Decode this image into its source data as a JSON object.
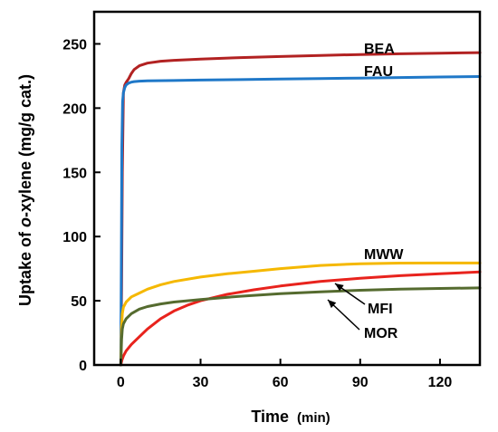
{
  "chart_data": {
    "type": "line",
    "xlabel": "Time",
    "xlabel_unit": "(min)",
    "ylabel_prefix": "Uptake of ",
    "ylabel_italic": "o",
    "ylabel_suffix": "-xylene (mg/g cat.)",
    "xlim": [
      -10,
      135
    ],
    "ylim": [
      0,
      275
    ],
    "x_ticks": [
      0,
      30,
      60,
      90,
      120
    ],
    "y_ticks": [
      0,
      50,
      100,
      150,
      200,
      250
    ],
    "grid": false,
    "series": [
      {
        "name": "BEA",
        "color": "#b22222",
        "x": [
          0,
          0.3,
          0.6,
          1,
          1.5,
          2,
          3,
          4,
          5,
          7,
          10,
          15,
          20,
          30,
          45,
          60,
          75,
          90,
          105,
          120,
          135
        ],
        "y": [
          0,
          60,
          150,
          212,
          218,
          220,
          223,
          227,
          230,
          233,
          235,
          236.5,
          237.2,
          238.2,
          239.3,
          240.2,
          241,
          241.7,
          242.3,
          242.8,
          243.2
        ]
      },
      {
        "name": "FAU",
        "color": "#1f78c8",
        "x": [
          0,
          0.2,
          0.4,
          0.7,
          1,
          1.5,
          2,
          3,
          4,
          5,
          7,
          10,
          20,
          30,
          45,
          60,
          75,
          90,
          105,
          120,
          135
        ],
        "y": [
          0,
          80,
          170,
          205,
          212,
          216,
          218,
          219.5,
          220.2,
          220.6,
          221,
          221.2,
          221.5,
          221.8,
          222.2,
          222.6,
          223,
          223.4,
          223.8,
          224.2,
          224.6
        ]
      },
      {
        "name": "MWW",
        "color": "#f5b800",
        "x": [
          0,
          0.3,
          0.6,
          1,
          2,
          4,
          7,
          10,
          15,
          20,
          30,
          40,
          50,
          60,
          75,
          90,
          105,
          120,
          135
        ],
        "y": [
          0,
          30,
          40,
          45,
          49,
          53,
          56,
          59,
          62.5,
          65,
          68.5,
          71,
          73,
          75,
          77.5,
          78.8,
          79.3,
          79.4,
          79.4
        ]
      },
      {
        "name": "MFI",
        "color": "#e8231d",
        "x": [
          0,
          0.5,
          1,
          2,
          4,
          7,
          10,
          15,
          20,
          25,
          30,
          40,
          50,
          60,
          75,
          90,
          105,
          120,
          135
        ],
        "y": [
          0,
          4,
          7,
          11,
          16,
          22,
          28,
          36,
          42,
          46.5,
          50,
          55,
          58.5,
          61.5,
          65,
          67.5,
          69.5,
          71,
          72.5
        ]
      },
      {
        "name": "MOR",
        "color": "#556b2f",
        "x": [
          0,
          0.3,
          0.6,
          1,
          2,
          4,
          7,
          10,
          15,
          20,
          30,
          45,
          60,
          75,
          90,
          105,
          120,
          135
        ],
        "y": [
          0,
          20,
          28,
          32,
          36,
          40,
          43.5,
          45.5,
          47.5,
          49,
          51,
          53.5,
          55.5,
          57,
          58.2,
          59,
          59.6,
          60
        ]
      }
    ]
  }
}
